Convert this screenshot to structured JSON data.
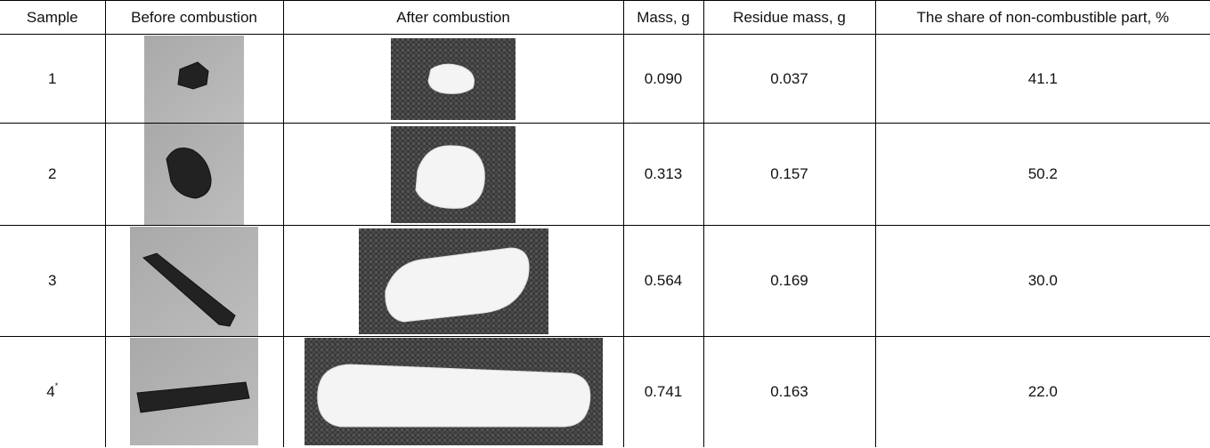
{
  "table": {
    "headers": [
      "Sample",
      "Before combustion",
      "After combustion",
      "Mass, g",
      "Residue mass, g",
      "The share of non-combustible part, %"
    ],
    "rows": [
      {
        "sample": "1",
        "mass": "0.090",
        "residue": "0.037",
        "share": "41.1"
      },
      {
        "sample": "2",
        "mass": "0.313",
        "residue": "0.157",
        "share": "50.2"
      },
      {
        "sample": "3",
        "mass": "0.564",
        "residue": "0.169",
        "share": "30.0"
      },
      {
        "sample": "4",
        "marker": "*",
        "mass": "0.741",
        "residue": "0.163",
        "share": "22.0"
      }
    ]
  }
}
